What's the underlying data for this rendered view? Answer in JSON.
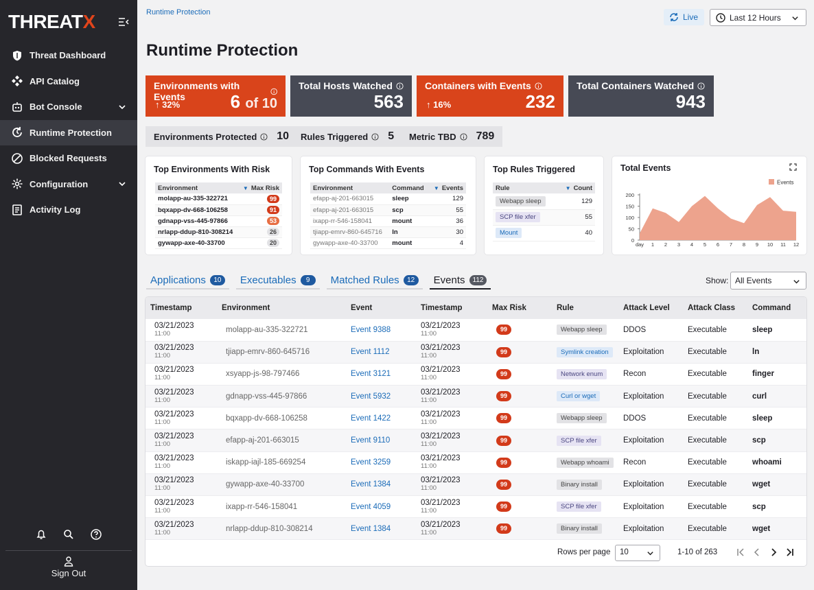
{
  "brand": {
    "name_main": "THREAT",
    "name_accent": "X"
  },
  "nav": [
    {
      "label": "Threat Dashboard",
      "icon": "shield-icon"
    },
    {
      "label": "API Catalog",
      "icon": "api-icon"
    },
    {
      "label": "Bot Console",
      "icon": "bot-icon",
      "expandable": true
    },
    {
      "label": "Runtime Protection",
      "icon": "runtime-icon",
      "active": true
    },
    {
      "label": "Blocked Requests",
      "icon": "blocked-icon"
    },
    {
      "label": "Configuration",
      "icon": "gear-icon",
      "expandable": true
    },
    {
      "label": "Activity Log",
      "icon": "log-icon"
    }
  ],
  "sidebar_footer": {
    "signout": "Sign Out"
  },
  "breadcrumb": "Runtime Protection",
  "live_label": "Live",
  "time_range": "Last 12 Hours",
  "page_title": "Runtime Protection",
  "kpis": {
    "env_events": {
      "label": "Environments with Events",
      "trend": "32%",
      "value": "6",
      "of": "of 10"
    },
    "hosts": {
      "label": "Total Hosts Watched",
      "value": "563"
    },
    "containers_events": {
      "label": "Containers with Events",
      "trend": "16%",
      "value": "232"
    },
    "containers_total": {
      "label": "Total Containers Watched",
      "value": "943"
    }
  },
  "mini_kpis": {
    "env_protected": {
      "label": "Environments Protected",
      "value": "10"
    },
    "rules": {
      "label": "Rules Triggered",
      "value": "5"
    },
    "metric": {
      "label": "Metric TBD",
      "value": "789"
    }
  },
  "top_envs": {
    "title": "Top Environments With Risk",
    "cols": [
      "Environment",
      "Max Risk"
    ],
    "rows": [
      {
        "env": "molapp-au-335-322721",
        "risk": "99"
      },
      {
        "env": "bqxapp-dv-668-106258",
        "risk": "91"
      },
      {
        "env": "gdnapp-vss-445-97866",
        "risk": "53"
      },
      {
        "env": "nrlapp-ddup-810-308214",
        "risk": "26"
      },
      {
        "env": "gywapp-axe-40-33700",
        "risk": "20"
      }
    ]
  },
  "top_cmds": {
    "title": "Top Commands With Events",
    "cols": [
      "Environment",
      "Command",
      "Events"
    ],
    "rows": [
      {
        "env": "efapp-aj-201-663015",
        "cmd": "sleep",
        "n": "129"
      },
      {
        "env": "efapp-aj-201-663015",
        "cmd": "scp",
        "n": "55"
      },
      {
        "env": "ixapp-rr-546-158041",
        "cmd": "mount",
        "n": "36"
      },
      {
        "env": "tjiapp-emrv-860-645716",
        "cmd": "ln",
        "n": "30"
      },
      {
        "env": "gywapp-axe-40-33700",
        "cmd": "mount",
        "n": "4"
      }
    ]
  },
  "top_rules": {
    "title": "Top Rules Triggered",
    "cols": [
      "Rule",
      "Count"
    ],
    "rows": [
      {
        "rule": "Webapp sleep",
        "n": "129"
      },
      {
        "rule": "SCP file xfer",
        "n": "55"
      },
      {
        "rule": "Mount",
        "n": "40"
      }
    ]
  },
  "chart_data": {
    "type": "area",
    "title": "Total Events",
    "series": [
      {
        "name": "Events",
        "values": [
          30,
          140,
          120,
          80,
          150,
          195,
          140,
          95,
          75,
          155,
          190,
          130,
          125
        ]
      }
    ],
    "x": [
      "day",
      "1",
      "2",
      "3",
      "4",
      "5",
      "6",
      "7",
      "8",
      "9",
      "10",
      "11",
      "12"
    ],
    "ylim": [
      0,
      200
    ],
    "yticks": [
      0,
      50,
      100,
      150,
      200
    ],
    "legend": "top-right",
    "color": "#eda38d"
  },
  "tabs": [
    {
      "label": "Applications",
      "count": "10"
    },
    {
      "label": "Executables",
      "count": "9"
    },
    {
      "label": "Matched Rules",
      "count": "12"
    },
    {
      "label": "Events",
      "count": "112",
      "active": true
    }
  ],
  "show": {
    "label": "Show:",
    "value": "All Events"
  },
  "events": {
    "cols": [
      "Timestamp",
      "Environment",
      "Event",
      "Timestamp",
      "Max Risk",
      "Rule",
      "Attack Level",
      "Attack Class",
      "Command"
    ],
    "rows": [
      {
        "date": "03/21/2023",
        "time": "11:00",
        "env": "molapp-au-335-322721",
        "event": "Event 9388",
        "date2": "03/21/2023",
        "time2": "11:00",
        "risk": "99",
        "rule": "Webapp sleep",
        "rule_style": "gray",
        "level": "DDOS",
        "cls": "Executable",
        "cmd": "sleep"
      },
      {
        "date": "03/21/2023",
        "time": "11:00",
        "env": "tjiapp-emrv-860-645716",
        "event": "Event 1112",
        "date2": "03/21/2023",
        "time2": "11:00",
        "risk": "99",
        "rule": "Symlink creation",
        "rule_style": "blue",
        "level": "Exploitation",
        "cls": "Executable",
        "cmd": "ln"
      },
      {
        "date": "03/21/2023",
        "time": "11:00",
        "env": "xsyapp-js-98-797466",
        "event": "Event 3121",
        "date2": "03/21/2023",
        "time2": "11:00",
        "risk": "99",
        "rule": "Network enum",
        "rule_style": "purple",
        "level": "Recon",
        "cls": "Executable",
        "cmd": "finger"
      },
      {
        "date": "03/21/2023",
        "time": "11:00",
        "env": "gdnapp-vss-445-97866",
        "event": "Event 5932",
        "date2": "03/21/2023",
        "time2": "11:00",
        "risk": "99",
        "rule": "Curl or wget",
        "rule_style": "blue",
        "level": "Exploitation",
        "cls": "Executable",
        "cmd": "curl"
      },
      {
        "date": "03/21/2023",
        "time": "11:00",
        "env": "bqxapp-dv-668-106258",
        "event": "Event 1422",
        "date2": "03/21/2023",
        "time2": "11:00",
        "risk": "99",
        "rule": "Webapp sleep",
        "rule_style": "gray",
        "level": "DDOS",
        "cls": "Executable",
        "cmd": "sleep"
      },
      {
        "date": "03/21/2023",
        "time": "11:00",
        "env": "efapp-aj-201-663015",
        "event": "Event 9110",
        "date2": "03/21/2023",
        "time2": "11:00",
        "risk": "99",
        "rule": "SCP file xfer",
        "rule_style": "purple",
        "level": "Exploitation",
        "cls": "Executable",
        "cmd": "scp"
      },
      {
        "date": "03/21/2023",
        "time": "11:00",
        "env": "iskapp-iajl-185-669254",
        "event": "Event 3259",
        "date2": "03/21/2023",
        "time2": "11:00",
        "risk": "99",
        "rule": "Webapp whoami",
        "rule_style": "gray",
        "level": "Recon",
        "cls": "Executable",
        "cmd": "whoami"
      },
      {
        "date": "03/21/2023",
        "time": "11:00",
        "env": "gywapp-axe-40-33700",
        "event": "Event 1384",
        "date2": "03/21/2023",
        "time2": "11:00",
        "risk": "99",
        "rule": "Binary install",
        "rule_style": "gray",
        "level": "Exploitation",
        "cls": "Executable",
        "cmd": "wget"
      },
      {
        "date": "03/21/2023",
        "time": "11:00",
        "env": "ixapp-rr-546-158041",
        "event": "Event 4059",
        "date2": "03/21/2023",
        "time2": "11:00",
        "risk": "99",
        "rule": "SCP file xfer",
        "rule_style": "purple",
        "level": "Exploitation",
        "cls": "Executable",
        "cmd": "scp"
      },
      {
        "date": "03/21/2023",
        "time": "11:00",
        "env": "nrlapp-ddup-810-308214",
        "event": "Event 1384",
        "date2": "03/21/2023",
        "time2": "11:00",
        "risk": "99",
        "rule": "Binary install",
        "rule_style": "gray",
        "level": "Exploitation",
        "cls": "Executable",
        "cmd": "wget"
      }
    ]
  },
  "pager": {
    "rows_label": "Rows per page",
    "rows_value": "10",
    "range": "1-10 of 263"
  },
  "colors": {
    "accent": "#d9441b",
    "sidebar": "#26262b",
    "link": "#1a6bb8",
    "risk": "#d23a1a"
  }
}
